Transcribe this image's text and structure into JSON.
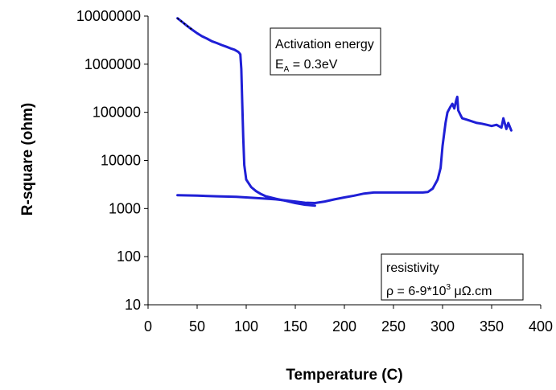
{
  "chart_data": {
    "type": "line",
    "xlabel": "Temperature (C)",
    "ylabel": "R-square (ohm)",
    "xlim": [
      0,
      400
    ],
    "ylim": [
      10,
      10000000
    ],
    "yscale": "log",
    "x_ticks": [
      "0",
      "50",
      "100",
      "150",
      "200",
      "250",
      "300",
      "350",
      "400"
    ],
    "y_ticks": [
      "10",
      "100",
      "1000",
      "10000",
      "100000",
      "1000000",
      "10000000"
    ],
    "grid": false,
    "series": [
      {
        "color": "#1f1fd6",
        "x": [
          30,
          35,
          40,
          45,
          50,
          55,
          60,
          65,
          70,
          75,
          80,
          85,
          88,
          90,
          92,
          93,
          94,
          95,
          96,
          97,
          98,
          100,
          105,
          110,
          115,
          120,
          130,
          140,
          150,
          160,
          170
        ],
        "y": [
          9000000,
          7500000,
          6200000,
          5200000,
          4400000,
          3800000,
          3400000,
          3000000,
          2750000,
          2500000,
          2300000,
          2100000,
          2000000,
          1900000,
          1800000,
          1700000,
          1600000,
          800000,
          150000,
          30000,
          8000,
          4000,
          2800,
          2300,
          2000,
          1800,
          1600,
          1450,
          1300,
          1200,
          1150
        ]
      },
      {
        "color": "#1f1fd6",
        "x": [
          30,
          50,
          70,
          90,
          110,
          130,
          150,
          160,
          170,
          180,
          190,
          200,
          210,
          220,
          230,
          240,
          250,
          260,
          270,
          280,
          285,
          290,
          295,
          298,
          300,
          303,
          305,
          308,
          310,
          312,
          314,
          315,
          316,
          318,
          320,
          325,
          330,
          335,
          340,
          345,
          350,
          355,
          360,
          362,
          365,
          367,
          370
        ],
        "y": [
          1900,
          1850,
          1800,
          1750,
          1650,
          1550,
          1400,
          1320,
          1300,
          1400,
          1550,
          1700,
          1850,
          2050,
          2150,
          2150,
          2150,
          2150,
          2150,
          2150,
          2200,
          2600,
          4000,
          7000,
          20000,
          60000,
          100000,
          130000,
          150000,
          120000,
          180000,
          210000,
          110000,
          90000,
          75000,
          70000,
          65000,
          60000,
          58000,
          55000,
          52000,
          55000,
          48000,
          75000,
          45000,
          60000,
          42000
        ]
      }
    ],
    "annotations": [
      {
        "line1": "Activation energy",
        "line2_main": "E",
        "line2_sub": "A",
        "line2_rest": " = 0.3eV"
      },
      {
        "line1": "resistivity",
        "line2_pre": "ρ = 6-9*10",
        "line2_sup": "3",
        "line2_rest": " μΩ.cm"
      }
    ]
  }
}
